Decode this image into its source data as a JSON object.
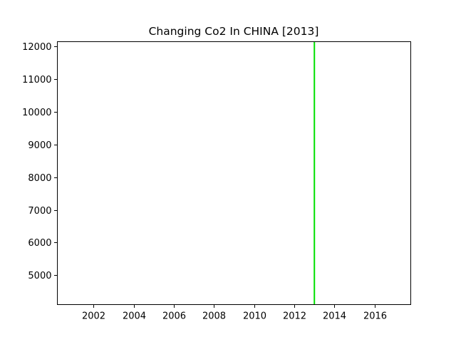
{
  "chart_data": {
    "type": "line",
    "title": "Changing Co2 In CHINA [2013]",
    "xlabel": "",
    "ylabel": "",
    "xlim": [
      2000.2,
      2017.8
    ],
    "ylim": [
      4100,
      12150
    ],
    "x_ticks": [
      2002,
      2004,
      2006,
      2008,
      2010,
      2012,
      2014,
      2016
    ],
    "y_ticks": [
      5000,
      6000,
      7000,
      8000,
      9000,
      10000,
      11000,
      12000
    ],
    "grid": false,
    "legend": "none",
    "series": [
      {
        "color": "#00e000",
        "x": [
          2013,
          2013
        ],
        "y": [
          4100,
          12150
        ]
      }
    ]
  }
}
